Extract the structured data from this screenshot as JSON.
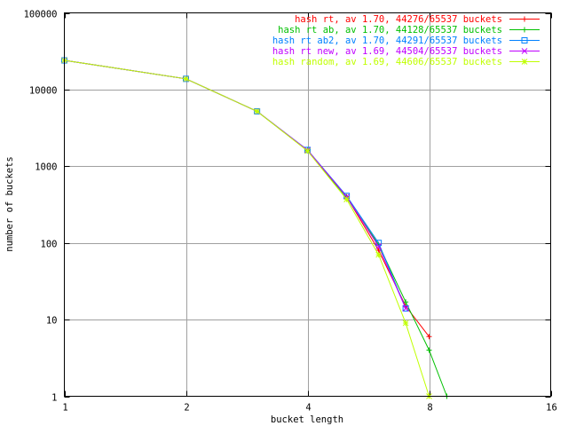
{
  "chart_data": {
    "type": "line",
    "title": "",
    "xlabel": "bucket length",
    "ylabel": "number of buckets",
    "xscale": "log2",
    "yscale": "log10",
    "xlim": [
      1,
      16
    ],
    "ylim": [
      1,
      100000
    ],
    "grid": true,
    "legend_position": "top-right",
    "x_ticks": [
      1,
      2,
      4,
      8,
      16
    ],
    "x_tick_labels": [
      "1",
      "2",
      "4",
      "8",
      "16"
    ],
    "y_ticks": [
      1,
      10,
      100,
      1000,
      10000,
      100000
    ],
    "y_tick_labels": [
      "1",
      "10",
      "100",
      "1000",
      "10000",
      "100000"
    ],
    "series": [
      {
        "name": "hash rt, av 1.70, 44276/65537 buckets",
        "color": "#ff0000",
        "marker": "plus",
        "points": [
          [
            1,
            24000
          ],
          [
            2,
            13800
          ],
          [
            3,
            5200
          ],
          [
            4,
            1620
          ],
          [
            5,
            400
          ],
          [
            6,
            80
          ],
          [
            7,
            15
          ],
          [
            8,
            6
          ]
        ]
      },
      {
        "name": "hash rt ab, av 1.70, 44128/65537 buckets",
        "color": "#00c000",
        "marker": "cross",
        "points": [
          [
            1,
            24000
          ],
          [
            2,
            13800
          ],
          [
            3,
            5200
          ],
          [
            4,
            1600
          ],
          [
            5,
            390
          ],
          [
            6,
            95
          ],
          [
            7,
            17
          ],
          [
            8,
            4
          ],
          [
            8.85,
            1
          ]
        ]
      },
      {
        "name": "hash rt ab2, av 1.70, 44291/65537 buckets",
        "color": "#0080ff",
        "marker": "square",
        "points": [
          [
            1,
            24000
          ],
          [
            2,
            13800
          ],
          [
            3,
            5200
          ],
          [
            4,
            1630
          ],
          [
            5,
            410
          ],
          [
            6,
            100
          ],
          [
            7,
            14
          ]
        ]
      },
      {
        "name": "hash rt new, av 1.69, 44504/65537 buckets",
        "color": "#c000ff",
        "marker": "x",
        "points": [
          [
            1,
            24000
          ],
          [
            2,
            13800
          ],
          [
            3,
            5200
          ],
          [
            4,
            1620
          ],
          [
            5,
            400
          ],
          [
            6,
            90
          ],
          [
            7,
            14
          ]
        ]
      },
      {
        "name": "hash random, av 1.69, 44606/65537 buckets",
        "color": "#c0ff00",
        "marker": "star",
        "points": [
          [
            1,
            24000
          ],
          [
            2,
            13800
          ],
          [
            3,
            5200
          ],
          [
            4,
            1580
          ],
          [
            5,
            370
          ],
          [
            6,
            70
          ],
          [
            7,
            9
          ],
          [
            8,
            1
          ]
        ]
      }
    ]
  }
}
